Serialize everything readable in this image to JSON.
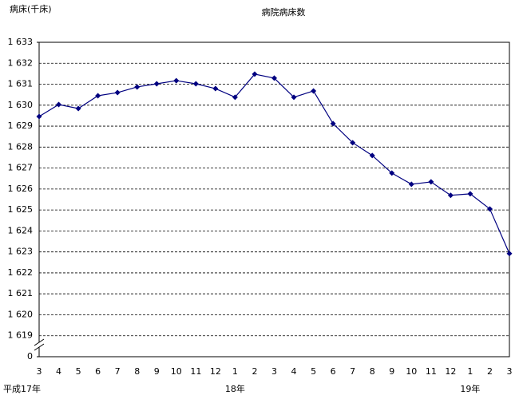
{
  "chart_data": {
    "type": "line",
    "title": "病院病床数",
    "y_axis_label": "病床(千床)",
    "categories": [
      "3",
      "4",
      "5",
      "6",
      "7",
      "8",
      "9",
      "10",
      "11",
      "12",
      "1",
      "2",
      "3",
      "4",
      "5",
      "6",
      "7",
      "8",
      "9",
      "10",
      "11",
      "12",
      "1",
      "2",
      "3"
    ],
    "year_labels": [
      "平成17年",
      null,
      null,
      null,
      null,
      null,
      null,
      null,
      null,
      null,
      "18年",
      null,
      null,
      null,
      null,
      null,
      null,
      null,
      null,
      null,
      null,
      null,
      "19年",
      null,
      null
    ],
    "series": [
      {
        "name": "病院病床数",
        "color": "#000080",
        "values": [
          1629.46,
          1630.03,
          1629.84,
          1630.45,
          1630.6,
          1630.87,
          1631.02,
          1631.17,
          1631.02,
          1630.79,
          1630.38,
          1631.48,
          1631.29,
          1630.38,
          1630.68,
          1629.12,
          1628.21,
          1627.6,
          1626.76,
          1626.23,
          1626.34,
          1625.7,
          1625.77,
          1625.05,
          1622.92
        ]
      }
    ],
    "ylim": [
      1619,
      1633
    ],
    "yticks": [
      0,
      {
        "value": 1619,
        "label": "1 619"
      },
      {
        "value": 1620,
        "label": "1 620"
      },
      {
        "value": 1621,
        "label": "1 621"
      },
      {
        "value": 1622,
        "label": "1 622"
      },
      {
        "value": 1623,
        "label": "1 623"
      },
      {
        "value": 1624,
        "label": "1 624"
      },
      {
        "value": 1625,
        "label": "1 625"
      },
      {
        "value": 1626,
        "label": "1 626"
      },
      {
        "value": 1627,
        "label": "1 627"
      },
      {
        "value": 1628,
        "label": "1 628"
      },
      {
        "value": 1629,
        "label": "1 629"
      },
      {
        "value": 1630,
        "label": "1 630"
      },
      {
        "value": 1631,
        "label": "1 631"
      },
      {
        "value": 1632,
        "label": "1 632"
      },
      {
        "value": 1633,
        "label": "1 633"
      }
    ],
    "axis_break": true,
    "grid": true
  }
}
